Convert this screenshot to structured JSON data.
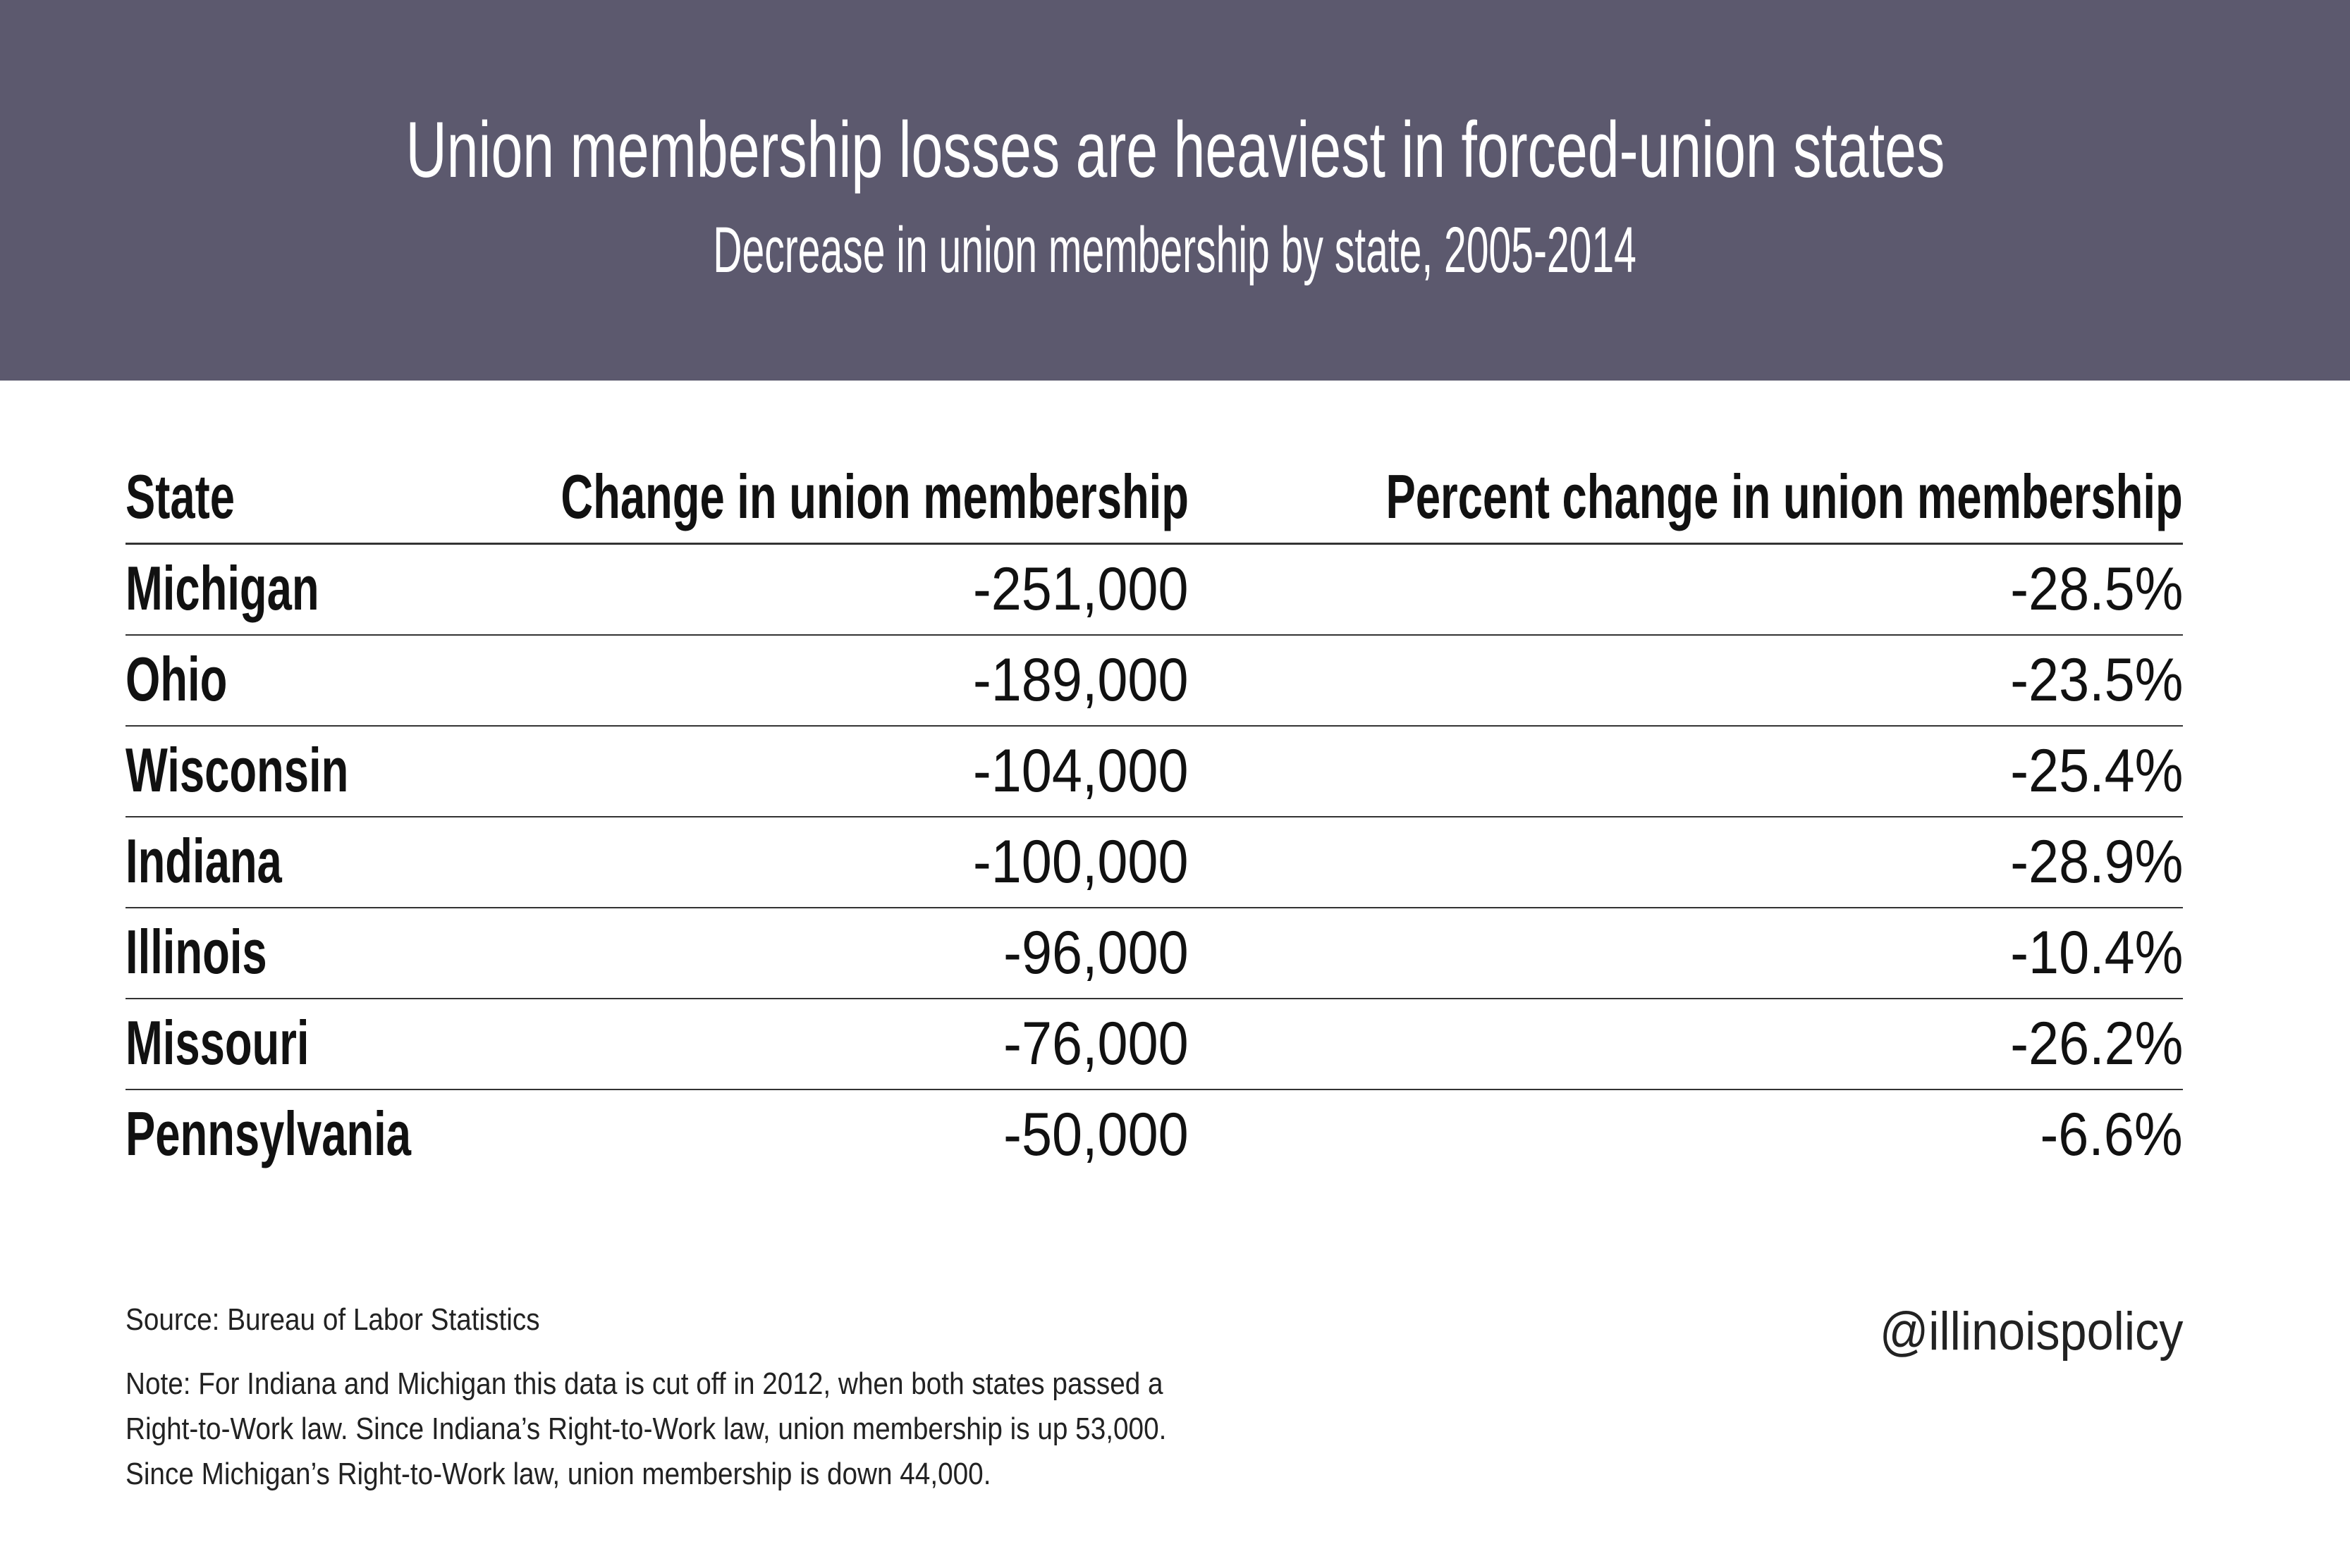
{
  "header": {
    "title": "Union membership losses are heaviest in forced-union states",
    "subtitle": "Decrease in union membership by state, 2005-2014",
    "background_color": "#5c596e"
  },
  "table": {
    "columns": [
      "State",
      "Change in union membership",
      "Percent change in union membership"
    ],
    "rows": [
      {
        "state": "Michigan",
        "change": "-251,000",
        "percent": "-28.5%"
      },
      {
        "state": "Ohio",
        "change": "-189,000",
        "percent": "-23.5%"
      },
      {
        "state": "Wisconsin",
        "change": "-104,000",
        "percent": "-25.4%"
      },
      {
        "state": "Indiana",
        "change": "-100,000",
        "percent": "-28.9%"
      },
      {
        "state": "Illinois",
        "change": "-96,000",
        "percent": "-10.4%"
      },
      {
        "state": "Missouri",
        "change": "-76,000",
        "percent": "-26.2%"
      },
      {
        "state": "Pennsylvania",
        "change": "-50,000",
        "percent": "-6.6%"
      }
    ]
  },
  "footer": {
    "source": "Source: Bureau of Labor Statistics",
    "note_lines": [
      "Note: For Indiana and Michigan this data is cut off in 2012, when both states passed a",
      "Right-to-Work law. Since Indiana’s Right-to-Work law, union membership is up 53,000.",
      "Since Michigan’s Right-to-Work law, union membership is down 44,000."
    ],
    "handle": "@illinoispolicy"
  }
}
